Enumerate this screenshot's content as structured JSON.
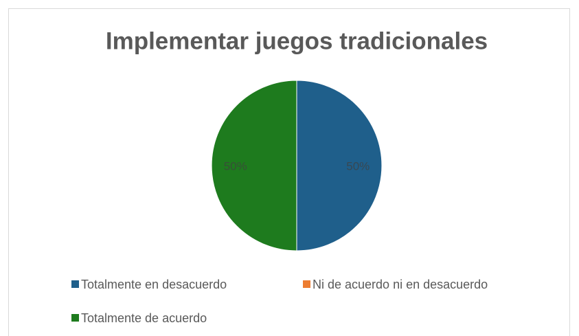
{
  "chart_data": {
    "type": "pie",
    "title": "Implementar juegos tradicionales",
    "categories": [
      "Totalmente en desacuerdo",
      "Ni de acuerdo ni en desacuerdo",
      "Totalmente de acuerdo"
    ],
    "values": [
      50,
      0,
      50
    ],
    "value_labels": [
      "50%",
      null,
      "50%"
    ],
    "colors": [
      "#1f5f8b",
      "#ed7d31",
      "#1e7b1e"
    ],
    "legend": "bottom"
  }
}
